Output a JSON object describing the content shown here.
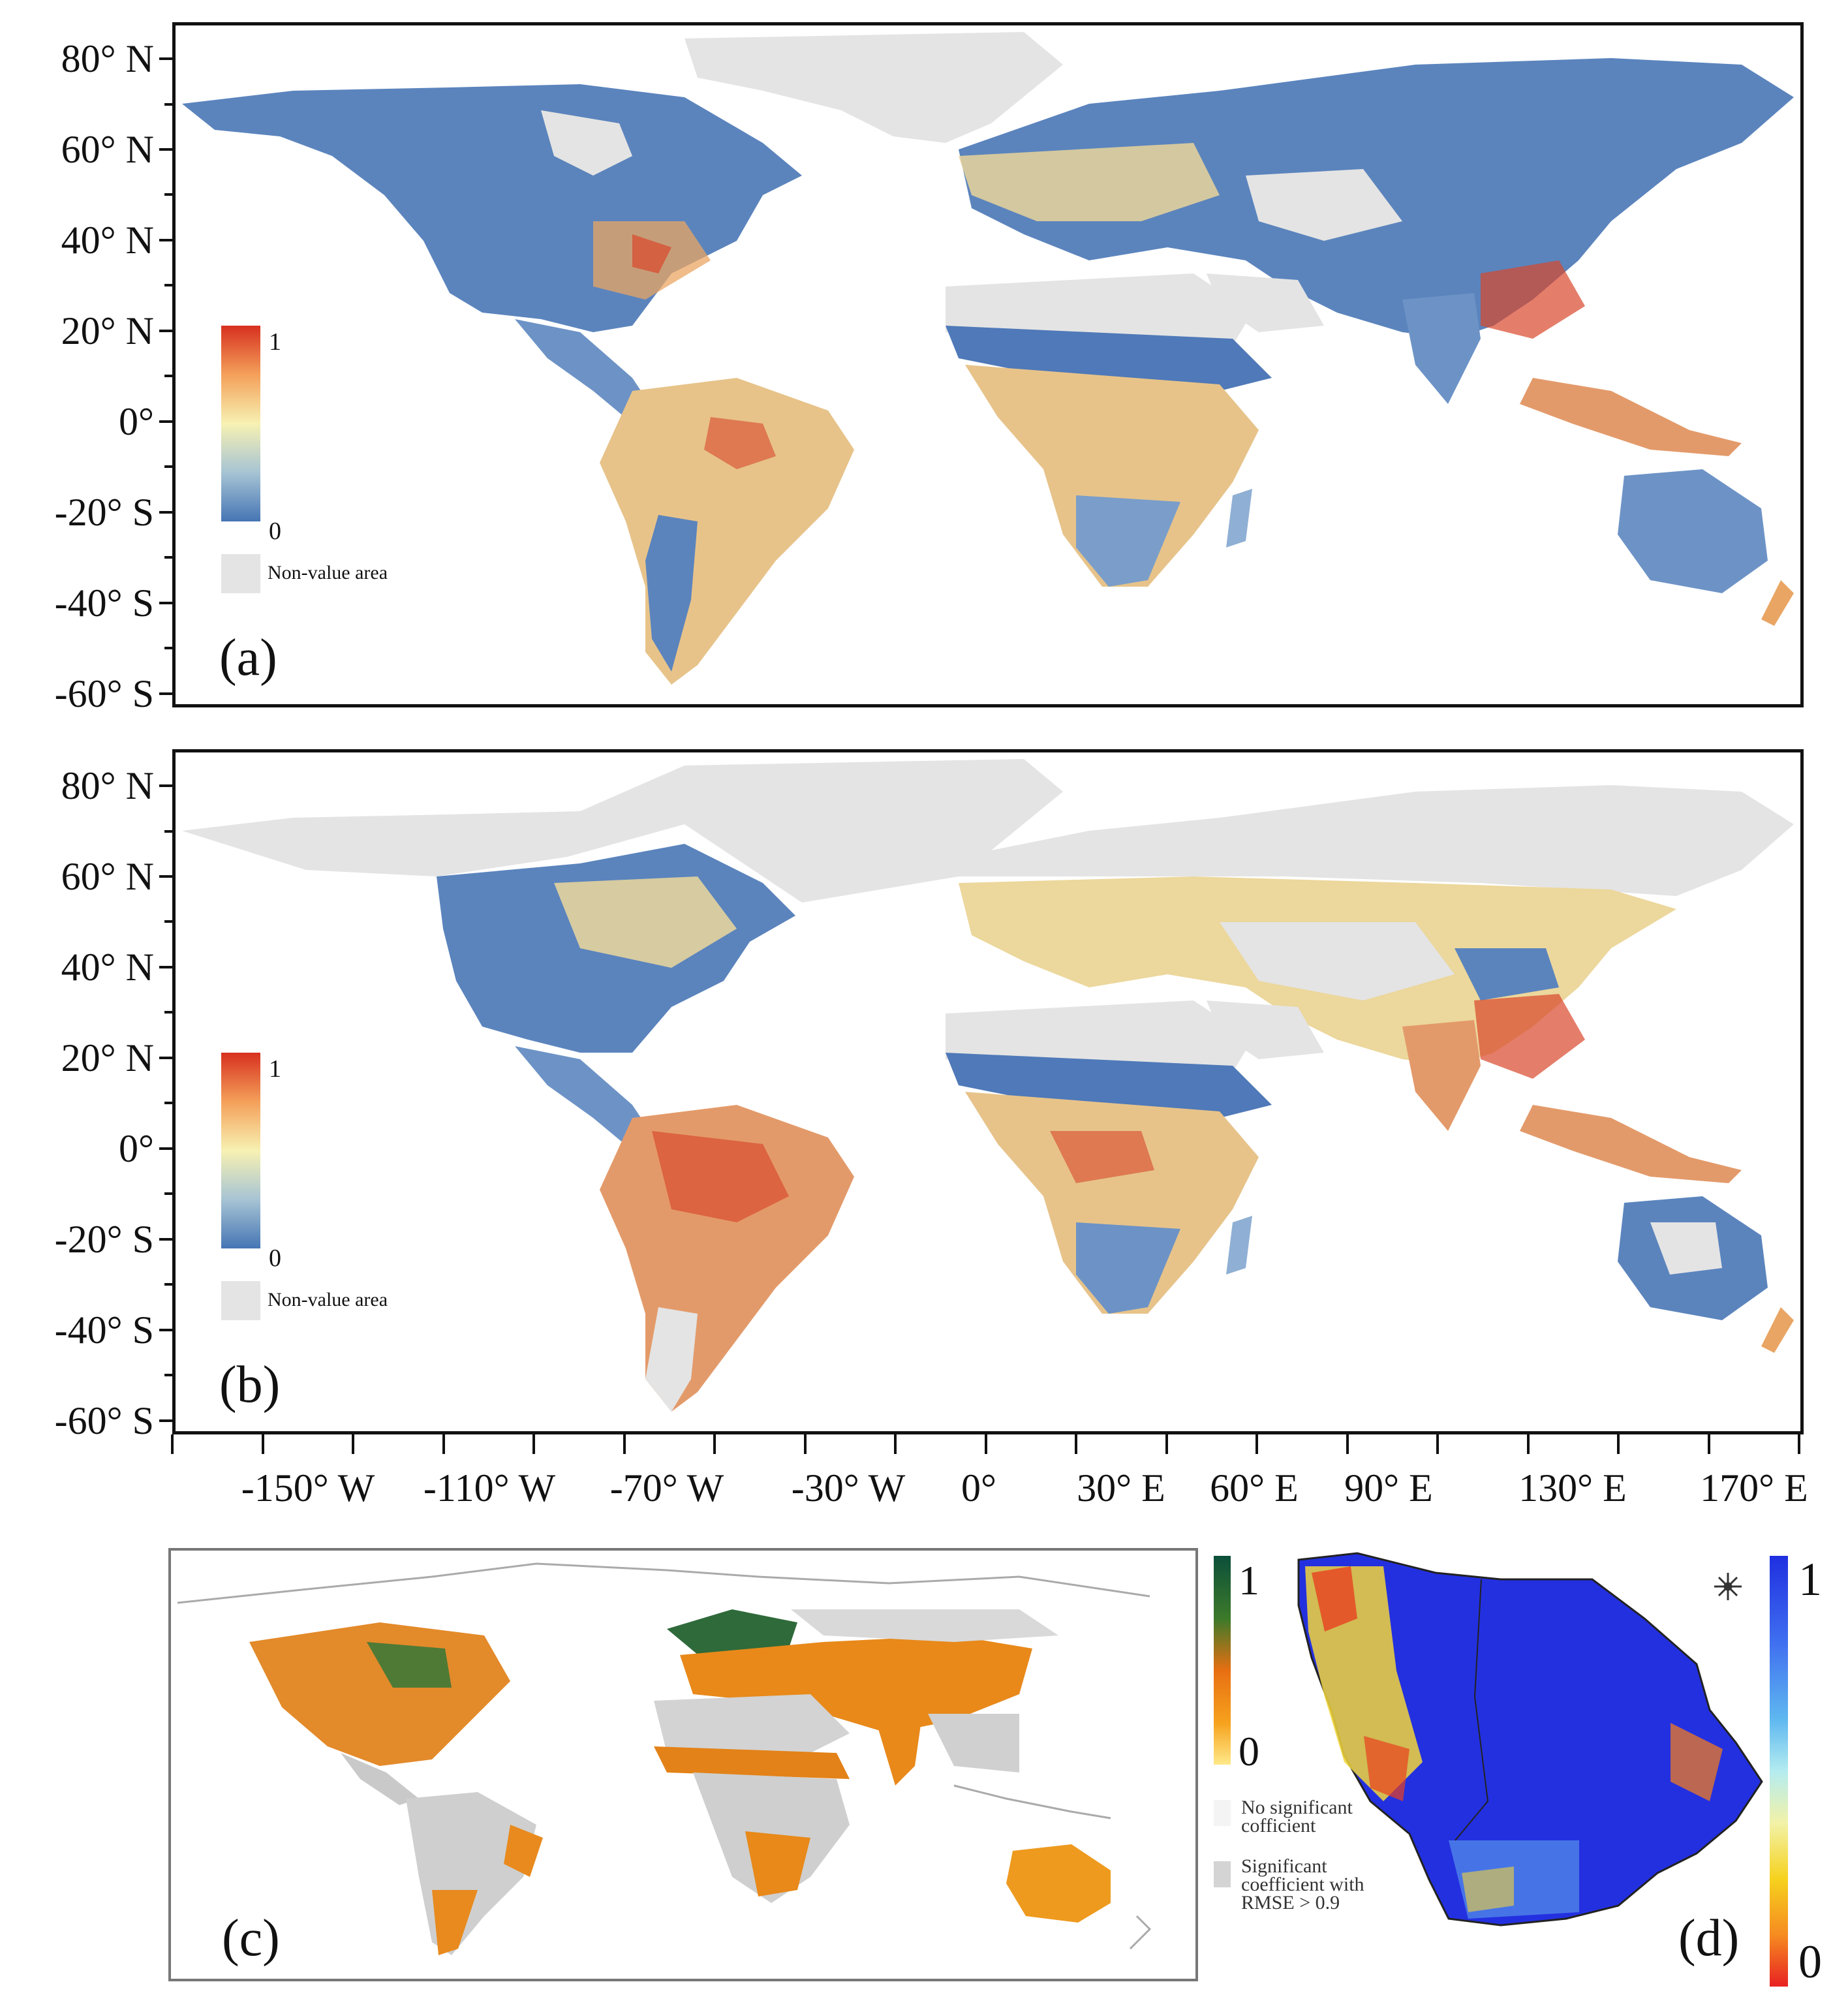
{
  "latitude_labels": [
    "80° N",
    "60° N",
    "40° N",
    "20° N",
    "0°",
    "-20° S",
    "-40° S",
    "-60° S"
  ],
  "longitude_labels": [
    "-150° W",
    "-110° W",
    "-70° W",
    "-30° W",
    "0°",
    "30° E",
    "60° E",
    "90° E",
    "130° E",
    "170° E"
  ],
  "panel_a": {
    "letter": "(a)",
    "legend": {
      "max": "1",
      "min": "0",
      "non_value": "Non-value area",
      "colors": [
        "#d7301f",
        "#f4a05a",
        "#f7f1b2",
        "#a7c4d4",
        "#4575b4"
      ]
    }
  },
  "panel_b": {
    "letter": "(b)",
    "legend": {
      "max": "1",
      "min": "0",
      "non_value": "Non-value area",
      "colors": [
        "#d7301f",
        "#f4a05a",
        "#f7f1b2",
        "#a7c4d4",
        "#4575b4"
      ]
    }
  },
  "panel_c": {
    "letter": "(c)",
    "legend": {
      "max": "1",
      "min": "0",
      "no_sig_line1": "No significant",
      "no_sig_line2": "cofficient",
      "sig_line1": "Significant",
      "sig_line2": "coefficient  with",
      "sig_line3": "RMSE > 0.9",
      "colors": [
        "#0b4f3a",
        "#3c7a2a",
        "#e86f12",
        "#f6a21d",
        "#ffe98a"
      ]
    }
  },
  "panel_d": {
    "letter": "(d)",
    "legend": {
      "max": "1",
      "min": "0",
      "colors": [
        "#1f2fe0",
        "#3f6ff0",
        "#5fb8f0",
        "#b4ecf0",
        "#f2f2a8",
        "#f6d21e",
        "#f68b20",
        "#e82222"
      ]
    }
  },
  "colors": {
    "non_value": "#e4e4e4",
    "land_low": "#4f79b8",
    "land_high": "#d9472b"
  }
}
